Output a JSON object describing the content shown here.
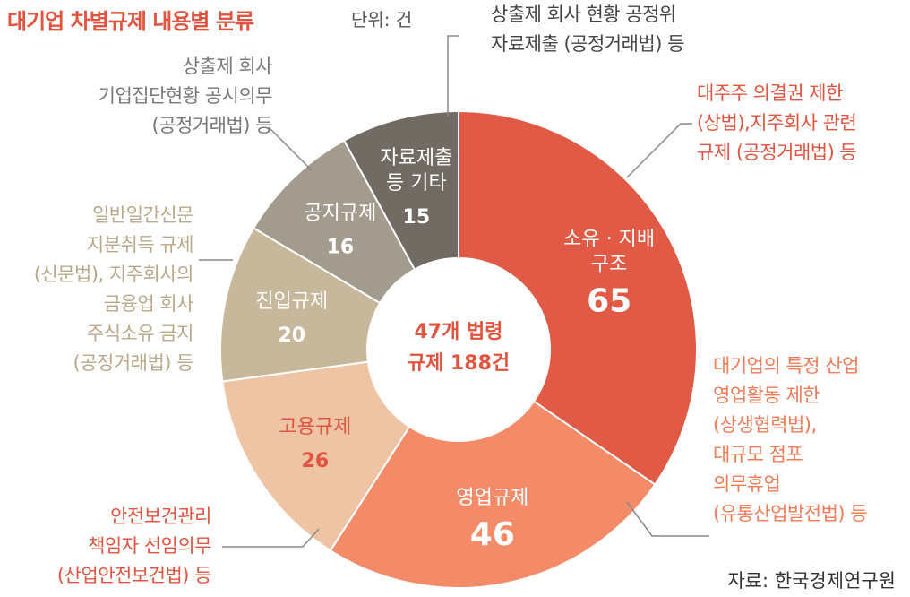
{
  "title": "대기업 차별규제 내용별 분류",
  "unit": "단위: 건",
  "source": "자료: 한국경제연구원",
  "chart_data": {
    "type": "pie",
    "center_label": [
      "47개 법령",
      "규제 188건"
    ],
    "slices": [
      {
        "label": [
          "소유 · 지배",
          "구조"
        ],
        "value": 65,
        "color": "#e05a46"
      },
      {
        "label": [
          "영업규제"
        ],
        "value": 46,
        "color": "#f38b68"
      },
      {
        "label": [
          "고용규제"
        ],
        "value": 26,
        "color": "#eec4a5"
      },
      {
        "label": [
          "진입규제"
        ],
        "value": 20,
        "color": "#c7b89c"
      },
      {
        "label": [
          "공지규제"
        ],
        "value": 16,
        "color": "#a29b8e"
      },
      {
        "label": [
          "자료제출",
          "등 기타"
        ],
        "value": 15,
        "color": "#716b63"
      }
    ]
  },
  "notes": {
    "owner": [
      "대주주 의결권 제한",
      "(상법),지주회사 관련",
      "규제 (공정거래법) 등"
    ],
    "business": [
      "대기업의 특정 산업",
      "영업활동 제한",
      "(상생협력법),",
      "대규모 점포",
      "의무휴업",
      "(유통산업발전법) 등"
    ],
    "employ": [
      "안전보건관리",
      "책임자 선임의무",
      "(산업안전보건법) 등"
    ],
    "entry": [
      "일반일간신문",
      "지분취득 규제",
      "(신문법), 지주회사의",
      "금융업 회사",
      "주식소유 금지",
      "(공정거래법) 등"
    ],
    "disclosure": [
      "상출제 회사",
      "기업집단현황 공시의무",
      "(공정거래법) 등"
    ],
    "submission": [
      "상출제 회사 현황 공정위",
      "자료제출 (공정거래법) 등"
    ]
  }
}
